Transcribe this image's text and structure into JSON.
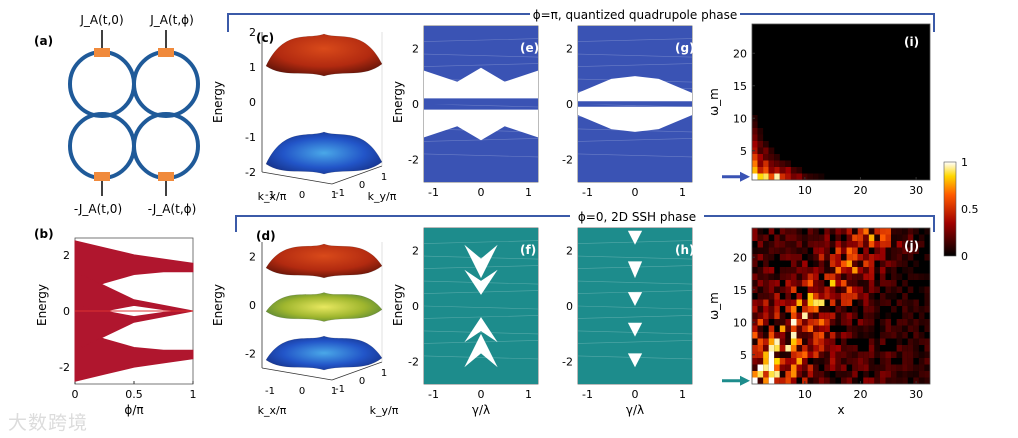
{
  "banners": {
    "top": "ϕ=π, quantized quadrupole phase",
    "bottom": "ϕ=0, 2D SSH phase"
  },
  "panel_labels": {
    "a": "(a)",
    "b": "(b)",
    "c": "(c)",
    "d": "(d)",
    "e": "(e)",
    "f": "(f)",
    "g": "(g)",
    "h": "(h)",
    "i": "(i)",
    "j": "(j)"
  },
  "circuit": {
    "top_left": "J_A(t,0)",
    "top_right": "J_A(t,ϕ)",
    "bottom_left": "-J_A(t,0)",
    "bottom_right": "-J_A(t,ϕ)",
    "ring_color": "#1f5a99",
    "coupler_color": "#f08a3c"
  },
  "watermark": "大数跨境",
  "colors": {
    "band_red": "#b0162e",
    "blue": "#3a53b4",
    "teal": "#1d8c8c",
    "upper_surface": "#b22a10",
    "lower_surface": "#2255c8",
    "middle_surface": "#9fb62e"
  },
  "chart_data": [
    {
      "id": "b",
      "type": "area",
      "xlabel": "ϕ/π",
      "ylabel": "Energy",
      "xlim": [
        0,
        1
      ],
      "ylim": [
        -2.6,
        2.6
      ],
      "xticks": [
        "0",
        "0.5",
        "1"
      ],
      "yticks": [
        "-2",
        "0",
        "2"
      ],
      "series": [
        {
          "x": [
            0,
            0.25,
            0.5,
            0.75,
            1
          ],
          "upper": [
            2.5,
            2.25,
            2.0,
            1.85,
            1.7
          ],
          "lower": [
            0.6,
            1.0,
            1.3,
            1.4,
            1.4
          ]
        },
        {
          "x": [
            0,
            0.25,
            0.5,
            0.75,
            1
          ],
          "upper": [
            -0.6,
            -1.0,
            -1.3,
            -1.4,
            -1.4
          ],
          "lower": [
            -2.5,
            -2.25,
            -2.0,
            -1.85,
            -1.7
          ]
        },
        {
          "x": [
            0,
            0.25,
            0.5,
            0.75,
            1
          ],
          "upper": [
            1.4,
            0.9,
            0.4,
            0.2,
            0.0
          ],
          "lower": [
            -0.2,
            0.0,
            0.2,
            0.05,
            0.0
          ]
        },
        {
          "x": [
            0,
            0.25,
            0.5,
            0.75,
            1
          ],
          "upper": [
            0.2,
            0.0,
            -0.2,
            -0.05,
            0.0
          ],
          "lower": [
            -1.4,
            -0.9,
            -0.4,
            -0.2,
            0.0
          ]
        }
      ],
      "line_y0": 0
    },
    {
      "id": "c",
      "type": "surface",
      "ylabel": "Energy",
      "xlabel": "k_x/π",
      "zlabel": "k_y/π",
      "ylim": [
        -2,
        2
      ],
      "yticks": [
        "-2",
        "-1",
        "0",
        "1",
        "2"
      ],
      "xticks": [
        "-1",
        "0",
        "1"
      ],
      "zticks": [
        "-1",
        "0",
        "1"
      ],
      "bands": [
        {
          "name": "upper",
          "min": 0.8,
          "max": 2.0
        },
        {
          "name": "lower",
          "min": -2.0,
          "max": -0.8
        }
      ]
    },
    {
      "id": "d",
      "type": "surface",
      "ylabel": "Energy",
      "xlabel": "k_x/π",
      "zlabel": "k_y/π",
      "ylim": [
        -2.6,
        2.6
      ],
      "yticks": [
        "-2",
        "0",
        "2"
      ],
      "xticks": [
        "-1",
        "0",
        "1"
      ],
      "zticks": [
        "-1",
        "0",
        "1"
      ],
      "bands": [
        {
          "name": "upper",
          "min": 1.2,
          "max": 2.6
        },
        {
          "name": "middle",
          "min": -0.6,
          "max": 0.6
        },
        {
          "name": "lower",
          "min": -2.6,
          "max": -1.2
        }
      ]
    },
    {
      "id": "e",
      "type": "area",
      "ylabel": "Energy",
      "xlabel": "",
      "xlim": [
        -1.2,
        1.2
      ],
      "ylim": [
        -2.8,
        2.8
      ],
      "xticks": [
        "-1",
        "0",
        "1"
      ],
      "yticks": [
        "-2",
        "0",
        "2"
      ],
      "gaps": [
        {
          "x": [
            -1.2,
            -0.5,
            0,
            0.5,
            1.2
          ],
          "top": [
            1.2,
            0.8,
            1.3,
            0.8,
            1.2
          ],
          "bot": [
            0.2,
            0.2,
            0.2,
            0.2,
            0.2
          ]
        },
        {
          "x": [
            -1.2,
            -0.5,
            0,
            0.5,
            1.2
          ],
          "top": [
            -0.2,
            -0.2,
            -0.2,
            -0.2,
            -0.2
          ],
          "bot": [
            -1.2,
            -0.8,
            -1.3,
            -0.8,
            -1.2
          ]
        }
      ],
      "line_y0": 0
    },
    {
      "id": "g",
      "type": "area",
      "ylabel": "",
      "xlabel": "",
      "xlim": [
        -1.2,
        1.2
      ],
      "ylim": [
        -2.8,
        2.8
      ],
      "xticks": [
        "-1",
        "0",
        "1"
      ],
      "yticks": [
        "-2",
        "0",
        "2"
      ],
      "gaps": [
        {
          "x": [
            -1.2,
            -0.5,
            0,
            0.5,
            1.2
          ],
          "top": [
            0.4,
            0.9,
            1.0,
            0.9,
            0.4
          ],
          "bot": [
            0.1,
            0.1,
            0.1,
            0.1,
            0.1
          ]
        },
        {
          "x": [
            -1.2,
            -0.5,
            0,
            0.5,
            1.2
          ],
          "top": [
            -0.1,
            -0.1,
            -0.1,
            -0.1,
            -0.1
          ],
          "bot": [
            -0.4,
            -0.9,
            -1.0,
            -0.9,
            -0.4
          ]
        }
      ],
      "line_y0": 0
    },
    {
      "id": "f",
      "type": "area",
      "ylabel": "Energy",
      "xlabel": "γ/λ",
      "xlim": [
        -1.2,
        1.2
      ],
      "ylim": [
        -2.8,
        2.8
      ],
      "xticks": [
        "-1",
        "0",
        "1"
      ],
      "yticks": [
        "-2",
        "0",
        "2"
      ],
      "gaps": [
        {
          "x": [
            -0.35,
            0,
            0.35
          ],
          "top": [
            2.2,
            1.0,
            2.2
          ],
          "bot": [
            2.2,
            1.7,
            2.2
          ]
        },
        {
          "x": [
            -0.35,
            0,
            0.35
          ],
          "top": [
            1.3,
            0.4,
            1.3
          ],
          "bot": [
            1.3,
            0.9,
            1.3
          ]
        },
        {
          "x": [
            -0.35,
            0,
            0.35
          ],
          "top": [
            -1.3,
            -0.9,
            -1.3
          ],
          "bot": [
            -1.3,
            -0.4,
            -1.3
          ]
        },
        {
          "x": [
            -0.35,
            0,
            0.35
          ],
          "top": [
            -2.2,
            -1.7,
            -2.2
          ],
          "bot": [
            -2.2,
            -1.0,
            -2.2
          ]
        }
      ]
    },
    {
      "id": "h",
      "type": "area",
      "ylabel": "",
      "xlabel": "γ/λ",
      "xlim": [
        -1.2,
        1.2
      ],
      "ylim": [
        -2.8,
        2.8
      ],
      "xticks": [
        "-1",
        "0",
        "1"
      ],
      "yticks": [
        "-2",
        "0",
        "2"
      ],
      "gaps": [
        {
          "x": [
            -0.15,
            0,
            0.15
          ],
          "top": [
            2.7,
            2.2,
            2.7
          ],
          "bot": [
            2.7,
            2.7,
            2.7
          ]
        },
        {
          "x": [
            -0.15,
            0,
            0.15
          ],
          "top": [
            1.6,
            1.0,
            1.6
          ],
          "bot": [
            1.6,
            1.6,
            1.6
          ]
        },
        {
          "x": [
            -0.15,
            0,
            0.15
          ],
          "top": [
            0.5,
            0.0,
            0.5
          ],
          "bot": [
            0.5,
            0.5,
            0.5
          ]
        },
        {
          "x": [
            -0.15,
            0,
            0.15
          ],
          "top": [
            -0.6,
            -1.1,
            -0.6
          ],
          "bot": [
            -0.6,
            -0.6,
            -0.6
          ]
        },
        {
          "x": [
            -0.15,
            0,
            0.15
          ],
          "top": [
            -1.7,
            -2.2,
            -1.7
          ],
          "bot": [
            -1.7,
            -1.7,
            -1.7
          ]
        }
      ]
    },
    {
      "id": "i",
      "type": "heatmap",
      "ylabel": "ω_m",
      "xlabel": "",
      "xlim": [
        0.5,
        32.5
      ],
      "ylim": [
        0.5,
        24.5
      ],
      "xticks": [
        "10",
        "20",
        "30"
      ],
      "yticks": [
        "5",
        "10",
        "15",
        "20"
      ],
      "cells": [
        [
          1,
          1,
          1.0
        ],
        [
          2,
          1,
          0.85
        ],
        [
          3,
          1,
          0.9
        ],
        [
          4,
          1,
          0.6
        ],
        [
          5,
          1,
          0.95
        ],
        [
          6,
          1,
          0.5
        ],
        [
          7,
          1,
          0.4
        ],
        [
          8,
          1,
          0.25
        ],
        [
          9,
          1,
          0.3
        ],
        [
          10,
          1,
          0.15
        ],
        [
          11,
          1,
          0.1
        ],
        [
          12,
          1,
          0.08
        ],
        [
          13,
          1,
          0.05
        ],
        [
          1,
          2,
          0.8
        ],
        [
          2,
          2,
          0.45
        ],
        [
          3,
          2,
          0.6
        ],
        [
          4,
          2,
          0.3
        ],
        [
          5,
          2,
          0.4
        ],
        [
          6,
          2,
          0.25
        ],
        [
          7,
          2,
          0.35
        ],
        [
          8,
          2,
          0.15
        ],
        [
          9,
          2,
          0.1
        ],
        [
          1,
          3,
          0.7
        ],
        [
          2,
          3,
          0.3
        ],
        [
          3,
          3,
          0.5
        ],
        [
          4,
          3,
          0.25
        ],
        [
          5,
          3,
          0.2
        ],
        [
          6,
          3,
          0.15
        ],
        [
          7,
          3,
          0.1
        ],
        [
          1,
          4,
          0.55
        ],
        [
          2,
          4,
          0.35
        ],
        [
          3,
          4,
          0.2
        ],
        [
          4,
          4,
          0.15
        ],
        [
          5,
          4,
          0.1
        ],
        [
          1,
          5,
          0.4
        ],
        [
          2,
          5,
          0.15
        ],
        [
          3,
          5,
          0.25
        ],
        [
          4,
          5,
          0.1
        ],
        [
          1,
          6,
          0.35
        ],
        [
          2,
          6,
          0.2
        ],
        [
          3,
          6,
          0.1
        ],
        [
          1,
          7,
          0.25
        ],
        [
          2,
          7,
          0.1
        ],
        [
          1,
          8,
          0.2
        ],
        [
          2,
          8,
          0.08
        ],
        [
          1,
          9,
          0.12
        ],
        [
          1,
          10,
          0.08
        ]
      ],
      "marker_row": 1
    },
    {
      "id": "j",
      "type": "heatmap",
      "ylabel": "ω_m",
      "xlabel": "x",
      "xlim": [
        0.5,
        32.5
      ],
      "ylim": [
        0.5,
        24.5
      ],
      "xticks": [
        "10",
        "20",
        "30"
      ],
      "yticks": [
        "5",
        "10",
        "15",
        "20"
      ],
      "seed": 7,
      "marker_row": 1
    },
    {
      "id": "colorbar",
      "type": "colorbar",
      "ylim": [
        0,
        1
      ],
      "ticks": [
        "0",
        "0.5",
        "1"
      ]
    }
  ]
}
